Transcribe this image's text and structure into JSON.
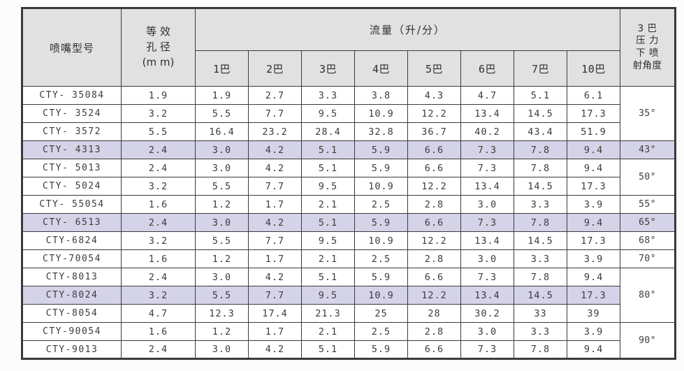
{
  "table": {
    "headers": {
      "model": "喷嘴型号",
      "aperture_lines": [
        "等 效",
        "孔 径",
        "(m m)"
      ],
      "flow": "流量（升/分）",
      "pressure_cols": [
        "1巴",
        "2巴",
        "3巴",
        "4巴",
        "5巴",
        "6巴",
        "7巴",
        "10巴"
      ],
      "angle_lines": [
        "3 巴",
        "压 力",
        "下 喷",
        "射角度"
      ]
    },
    "rows": [
      {
        "model": "CTY- 35084",
        "aperture": "1.9",
        "flows": [
          "1.9",
          "2.7",
          "3.3",
          "3.8",
          "4.3",
          "4.7",
          "5.1",
          "6.1"
        ],
        "highlight": false
      },
      {
        "model": "CTY- 3524",
        "aperture": "3.2",
        "flows": [
          "5.5",
          "7.7",
          "9.5",
          "10.9",
          "12.2",
          "13.4",
          "14.5",
          "17.3"
        ],
        "highlight": false
      },
      {
        "model": "CTY- 3572",
        "aperture": "5.5",
        "flows": [
          "16.4",
          "23.2",
          "28.4",
          "32.8",
          "36.7",
          "40.2",
          "43.4",
          "51.9"
        ],
        "highlight": false
      },
      {
        "model": "CTY- 4313",
        "aperture": "2.4",
        "flows": [
          "3.0",
          "4.2",
          "5.1",
          "5.9",
          "6.6",
          "7.3",
          "7.8",
          "9.4"
        ],
        "highlight": true
      },
      {
        "model": "CTY- 5013",
        "aperture": "2.4",
        "flows": [
          "3.0",
          "4.2",
          "5.1",
          "5.9",
          "6.6",
          "7.3",
          "7.8",
          "9.4"
        ],
        "highlight": false
      },
      {
        "model": "CTY- 5024",
        "aperture": "3.2",
        "flows": [
          "5.5",
          "7.7",
          "9.5",
          "10.9",
          "12.2",
          "13.4",
          "14.5",
          "17.3"
        ],
        "highlight": false
      },
      {
        "model": "CTY- 55054",
        "aperture": "1.6",
        "flows": [
          "1.2",
          "1.7",
          "2.1",
          "2.5",
          "2.8",
          "3.0",
          "3.3",
          "3.9"
        ],
        "highlight": false
      },
      {
        "model": "CTY- 6513",
        "aperture": "2.4",
        "flows": [
          "3.0",
          "4.2",
          "5.1",
          "5.9",
          "6.6",
          "7.3",
          "7.8",
          "9.4"
        ],
        "highlight": true
      },
      {
        "model": "CTY-6824",
        "aperture": "3.2",
        "flows": [
          "5.5",
          "7.7",
          "9.5",
          "10.9",
          "12.2",
          "13.4",
          "14.5",
          "17.3"
        ],
        "highlight": false
      },
      {
        "model": "CTY-70054",
        "aperture": "1.6",
        "flows": [
          "1.2",
          "1.7",
          "2.1",
          "2.5",
          "2.8",
          "3.0",
          "3.3",
          "3.9"
        ],
        "highlight": false
      },
      {
        "model": "CTY-8013",
        "aperture": "2.4",
        "flows": [
          "3.0",
          "4.2",
          "5.1",
          "5.9",
          "6.6",
          "7.3",
          "7.8",
          "9.4"
        ],
        "highlight": false
      },
      {
        "model": "CTY-8024",
        "aperture": "3.2",
        "flows": [
          "5.5",
          "7.7",
          "9.5",
          "10.9",
          "12.2",
          "13.4",
          "14.5",
          "17.3"
        ],
        "highlight": true
      },
      {
        "model": "CTY-8054",
        "aperture": "4.7",
        "flows": [
          "12.3",
          "17.4",
          "21.3",
          "25",
          "28",
          "30.2",
          "33",
          "39"
        ],
        "highlight": false
      },
      {
        "model": "CTY-90054",
        "aperture": "1.6",
        "flows": [
          "1.2",
          "1.7",
          "2.1",
          "2.5",
          "2.8",
          "3.0",
          "3.3",
          "3.9"
        ],
        "highlight": false
      },
      {
        "model": "CTY-9013",
        "aperture": "2.4",
        "flows": [
          "3.0",
          "4.2",
          "5.1",
          "5.9",
          "6.6",
          "7.3",
          "7.8",
          "9.4"
        ],
        "highlight": false
      }
    ],
    "angle_groups": [
      {
        "label": "35°",
        "start": 0,
        "span": 3,
        "highlight": false
      },
      {
        "label": "43°",
        "start": 3,
        "span": 1,
        "highlight": true
      },
      {
        "label": "50°",
        "start": 4,
        "span": 2,
        "highlight": false
      },
      {
        "label": "55°",
        "start": 6,
        "span": 1,
        "highlight": false
      },
      {
        "label": "65°",
        "start": 7,
        "span": 1,
        "highlight": true
      },
      {
        "label": "68°",
        "start": 8,
        "span": 1,
        "highlight": false
      },
      {
        "label": "70°",
        "start": 9,
        "span": 1,
        "highlight": false
      },
      {
        "label": "80°",
        "start": 10,
        "span": 3,
        "highlight": false
      },
      {
        "label": "90°",
        "start": 13,
        "span": 2,
        "highlight": false
      }
    ],
    "colors": {
      "header_bg": "#e1e1e1",
      "highlight_bg": "#d5d3e8",
      "border": "#3a3a3a",
      "page_bg": "#fcfcfc"
    }
  }
}
